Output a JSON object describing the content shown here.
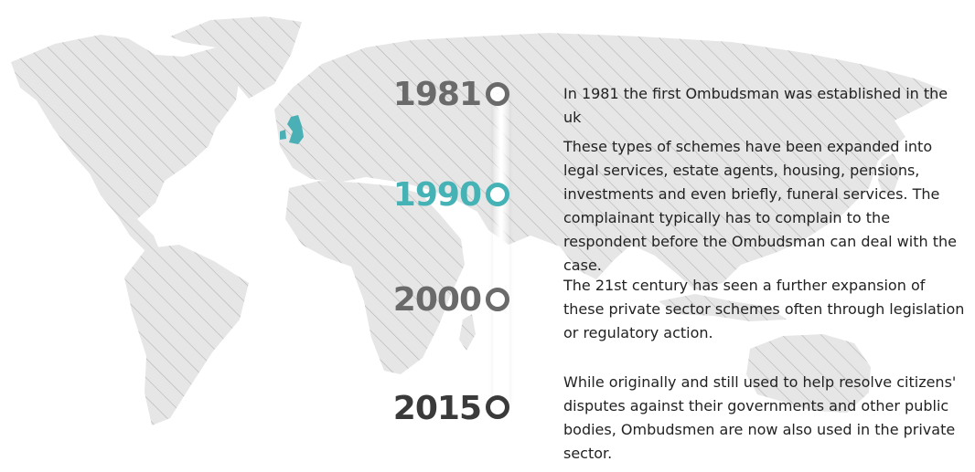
{
  "colors": {
    "map_land": "#e6e6e6",
    "map_hatch": "#b4b4b4",
    "highlight_uk": "#4ab0b5",
    "year_default": "#6a6a6a",
    "year_active": "#45b3b6",
    "year_last": "#3a3a3a",
    "text": "#222222"
  },
  "timeline": [
    {
      "year": "1981",
      "state": "default"
    },
    {
      "year": "1990",
      "state": "active"
    },
    {
      "year": "2000",
      "state": "default"
    },
    {
      "year": "2015",
      "state": "last"
    }
  ],
  "entries": [
    "In 1981 the first Ombudsman was established in the uk",
    "These types of schemes have been expanded into legal services, estate agents, housing, pensions, investments and even briefly, funeral services.  The complainant typically has to complain to the respondent before the Ombudsman can deal with the case.",
    "The 21st century has seen a further expansion of these private sector schemes often through legislation or regulatory action.",
    "While originally and still used to help resolve citizens' disputes against their governments and other public bodies, Ombudsmen are now also used in the private sector."
  ],
  "icons": {
    "map": "world-map-icon",
    "uk": "uk-highlight-icon"
  }
}
